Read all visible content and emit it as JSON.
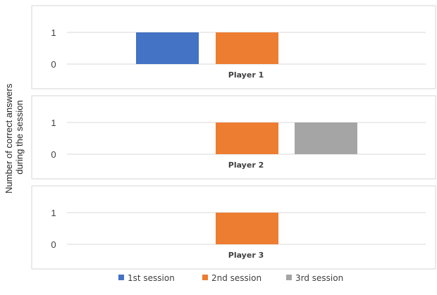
{
  "chart_data": {
    "type": "bar",
    "layout": "three stacked panels sharing one y-axis label",
    "ylabel_lines": [
      "Number of correct answers",
      "during the session"
    ],
    "ylim": [
      0,
      1
    ],
    "yticks": [
      0,
      1
    ],
    "legend_position": "bottom",
    "series": [
      {
        "name": "1st session",
        "color": "#4472c4"
      },
      {
        "name": "2nd session",
        "color": "#ed7d31"
      },
      {
        "name": "3rd session",
        "color": "#a5a5a5"
      }
    ],
    "panels": [
      {
        "label": "Player 1",
        "values": [
          1,
          1,
          0
        ]
      },
      {
        "label": "Player 2",
        "values": [
          0,
          1,
          1
        ]
      },
      {
        "label": "Player 3",
        "values": [
          0,
          1,
          0
        ]
      }
    ]
  }
}
